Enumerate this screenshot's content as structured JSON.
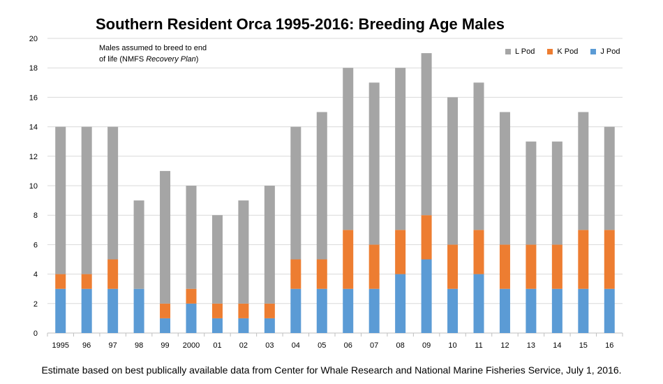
{
  "chart_data": {
    "type": "bar",
    "stacked": true,
    "title": "Southern Resident Orca 1995-2016: Breeding Age Males",
    "categories": [
      "1995",
      "96",
      "97",
      "98",
      "99",
      "2000",
      "01",
      "02",
      "03",
      "04",
      "05",
      "06",
      "07",
      "08",
      "09",
      "10",
      "11",
      "12",
      "13",
      "14",
      "15",
      "16"
    ],
    "series": [
      {
        "name": "J Pod",
        "color": "#5b9bd5",
        "values": [
          3,
          3,
          3,
          3,
          1,
          2,
          1,
          1,
          1,
          3,
          3,
          3,
          3,
          4,
          5,
          3,
          4,
          3,
          3,
          3,
          3,
          3
        ]
      },
      {
        "name": "K Pod",
        "color": "#ed7d31",
        "values": [
          1,
          1,
          2,
          0,
          1,
          1,
          1,
          1,
          1,
          2,
          2,
          4,
          3,
          3,
          3,
          3,
          3,
          3,
          3,
          3,
          4,
          4
        ]
      },
      {
        "name": "L Pod",
        "color": "#a5a5a5",
        "values": [
          10,
          10,
          9,
          6,
          9,
          7,
          6,
          7,
          8,
          9,
          10,
          11,
          11,
          11,
          11,
          10,
          10,
          9,
          7,
          7,
          8,
          7
        ]
      }
    ],
    "legend_order": [
      "L Pod",
      "K Pod",
      "J Pod"
    ],
    "ylim": [
      0,
      20
    ],
    "yticks": [
      0,
      2,
      4,
      6,
      8,
      10,
      12,
      14,
      16,
      18,
      20
    ],
    "grid": true,
    "legend_position": "top-right",
    "annotation": {
      "line1": "Males assumed to breed to end",
      "line2_prefix": "of life (NMFS ",
      "line2_italic": "Recovery Plan",
      "line2_suffix": ")"
    }
  },
  "caption": "Estimate based on best publically available data from Center for Whale Research and National Marine Fisheries Service, July 1, 2016."
}
